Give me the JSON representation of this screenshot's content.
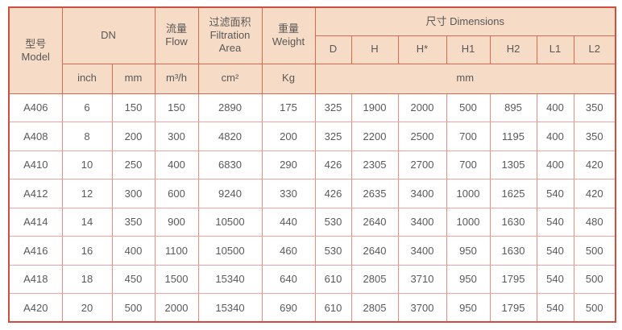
{
  "colors": {
    "header_background": "#f6dbc6",
    "outer_border": "#cf4f3e",
    "header_grid": "#dd6a4e",
    "body_grid_vertical": "#ec8d80",
    "body_grid_horizontal": "#f2a69b",
    "text": "#58595b"
  },
  "table": {
    "header": {
      "model": {
        "zh": "型号",
        "en": "Model"
      },
      "dn": "DN",
      "flow": {
        "zh": "流量",
        "en": "Flow"
      },
      "filtration": {
        "zh": "过滤面积",
        "en": "Filtration Area"
      },
      "weight": {
        "zh": "重量",
        "en": "Weight"
      },
      "dimensions": "尺寸 Dimensions",
      "dimension_cols": [
        "D",
        "H",
        "H*",
        "H1",
        "H2",
        "L1",
        "L2"
      ],
      "units": {
        "inch": "inch",
        "mm": "mm",
        "flow": "m³/h",
        "area": "cm²",
        "weight": "Kg",
        "dimensions_mm": "mm"
      }
    },
    "rows": [
      [
        "A406",
        "6",
        "150",
        "150",
        "2890",
        "175",
        "325",
        "1900",
        "2000",
        "500",
        "895",
        "400",
        "350"
      ],
      [
        "A408",
        "8",
        "200",
        "300",
        "4820",
        "200",
        "325",
        "2200",
        "2500",
        "700",
        "1195",
        "400",
        "350"
      ],
      [
        "A410",
        "10",
        "250",
        "400",
        "6830",
        "290",
        "426",
        "2305",
        "2700",
        "700",
        "1305",
        "400",
        "420"
      ],
      [
        "A412",
        "12",
        "300",
        "600",
        "9240",
        "330",
        "426",
        "2635",
        "3400",
        "1000",
        "1625",
        "540",
        "420"
      ],
      [
        "A414",
        "14",
        "350",
        "900",
        "10500",
        "440",
        "530",
        "2640",
        "3400",
        "1000",
        "1630",
        "540",
        "480"
      ],
      [
        "A416",
        "16",
        "400",
        "1100",
        "10500",
        "460",
        "530",
        "2640",
        "3400",
        "950",
        "1630",
        "540",
        "500"
      ],
      [
        "A418",
        "18",
        "450",
        "1500",
        "15340",
        "640",
        "610",
        "2805",
        "3710",
        "950",
        "1795",
        "540",
        "500"
      ],
      [
        "A420",
        "20",
        "500",
        "2000",
        "15340",
        "690",
        "610",
        "2805",
        "3700",
        "950",
        "1795",
        "540",
        "500"
      ]
    ]
  }
}
